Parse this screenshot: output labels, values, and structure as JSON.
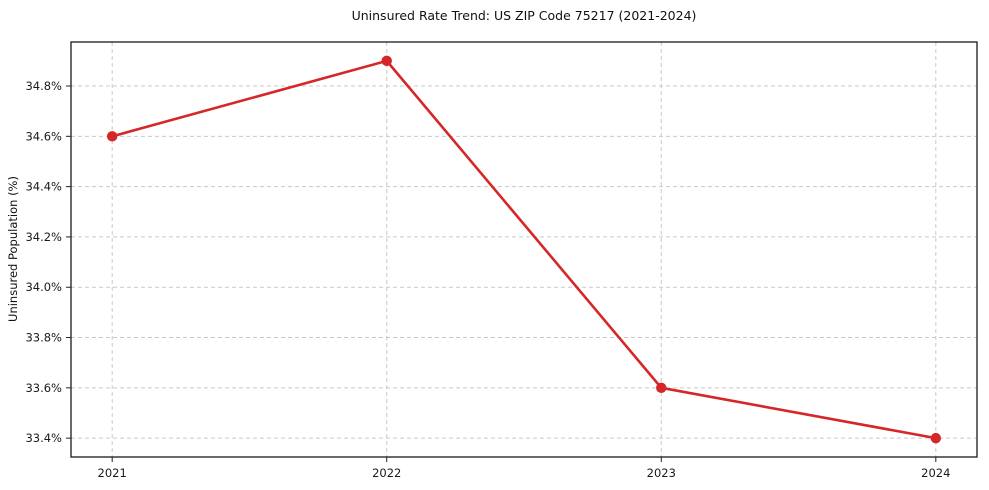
{
  "chart_data": {
    "type": "line",
    "title": "Uninsured Rate Trend: US ZIP Code 75217 (2021-2024)",
    "xlabel": "",
    "ylabel": "Uninsured Population (%)",
    "x": [
      2021,
      2022,
      2023,
      2024
    ],
    "values": [
      34.6,
      34.9,
      33.6,
      33.4
    ],
    "series_name": "uninsured-rate",
    "xlim": [
      2020.85,
      2024.15
    ],
    "ylim": [
      33.325,
      34.975
    ],
    "xticks": {
      "values": [
        2021,
        2022,
        2023,
        2024
      ],
      "labels": [
        "2021",
        "2022",
        "2023",
        "2024"
      ]
    },
    "yticks": {
      "values": [
        33.4,
        33.6,
        33.8,
        34.0,
        34.2,
        34.4,
        34.6,
        34.8
      ],
      "labels": [
        "33.4%",
        "33.6%",
        "33.8%",
        "34.0%",
        "34.2%",
        "34.4%",
        "34.6%",
        "34.8%"
      ]
    },
    "grid": true,
    "legend": "none",
    "line_color": "#d62728",
    "grid_color": "#c9c9c9",
    "marker": "circle"
  }
}
